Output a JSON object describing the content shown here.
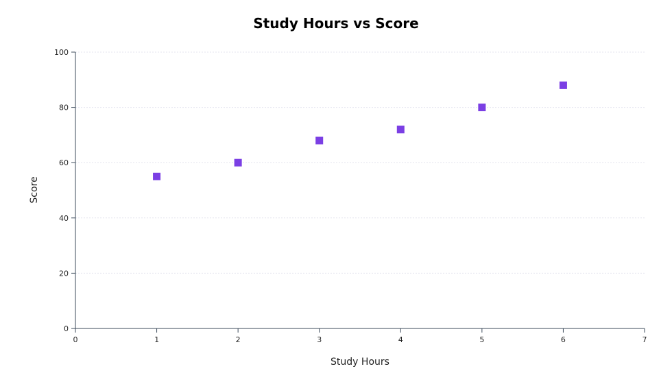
{
  "chart_data": {
    "type": "scatter",
    "title": "Study Hours vs Score",
    "xlabel": "Study Hours",
    "ylabel": "Score",
    "xlim": [
      0,
      7
    ],
    "ylim": [
      0,
      100
    ],
    "xticks": [
      0,
      1,
      2,
      3,
      4,
      5,
      6,
      7
    ],
    "yticks": [
      0,
      20,
      40,
      60,
      80,
      100
    ],
    "grid": "horizontal",
    "marker": "square",
    "colors": {
      "point": "#7b3fe4",
      "axis": "#3b4a5a",
      "grid": "#e3e3ee"
    },
    "series": [
      {
        "x": [
          1,
          2,
          3,
          4,
          5,
          6
        ],
        "y": [
          55,
          60,
          68,
          72,
          80,
          88
        ]
      }
    ]
  }
}
